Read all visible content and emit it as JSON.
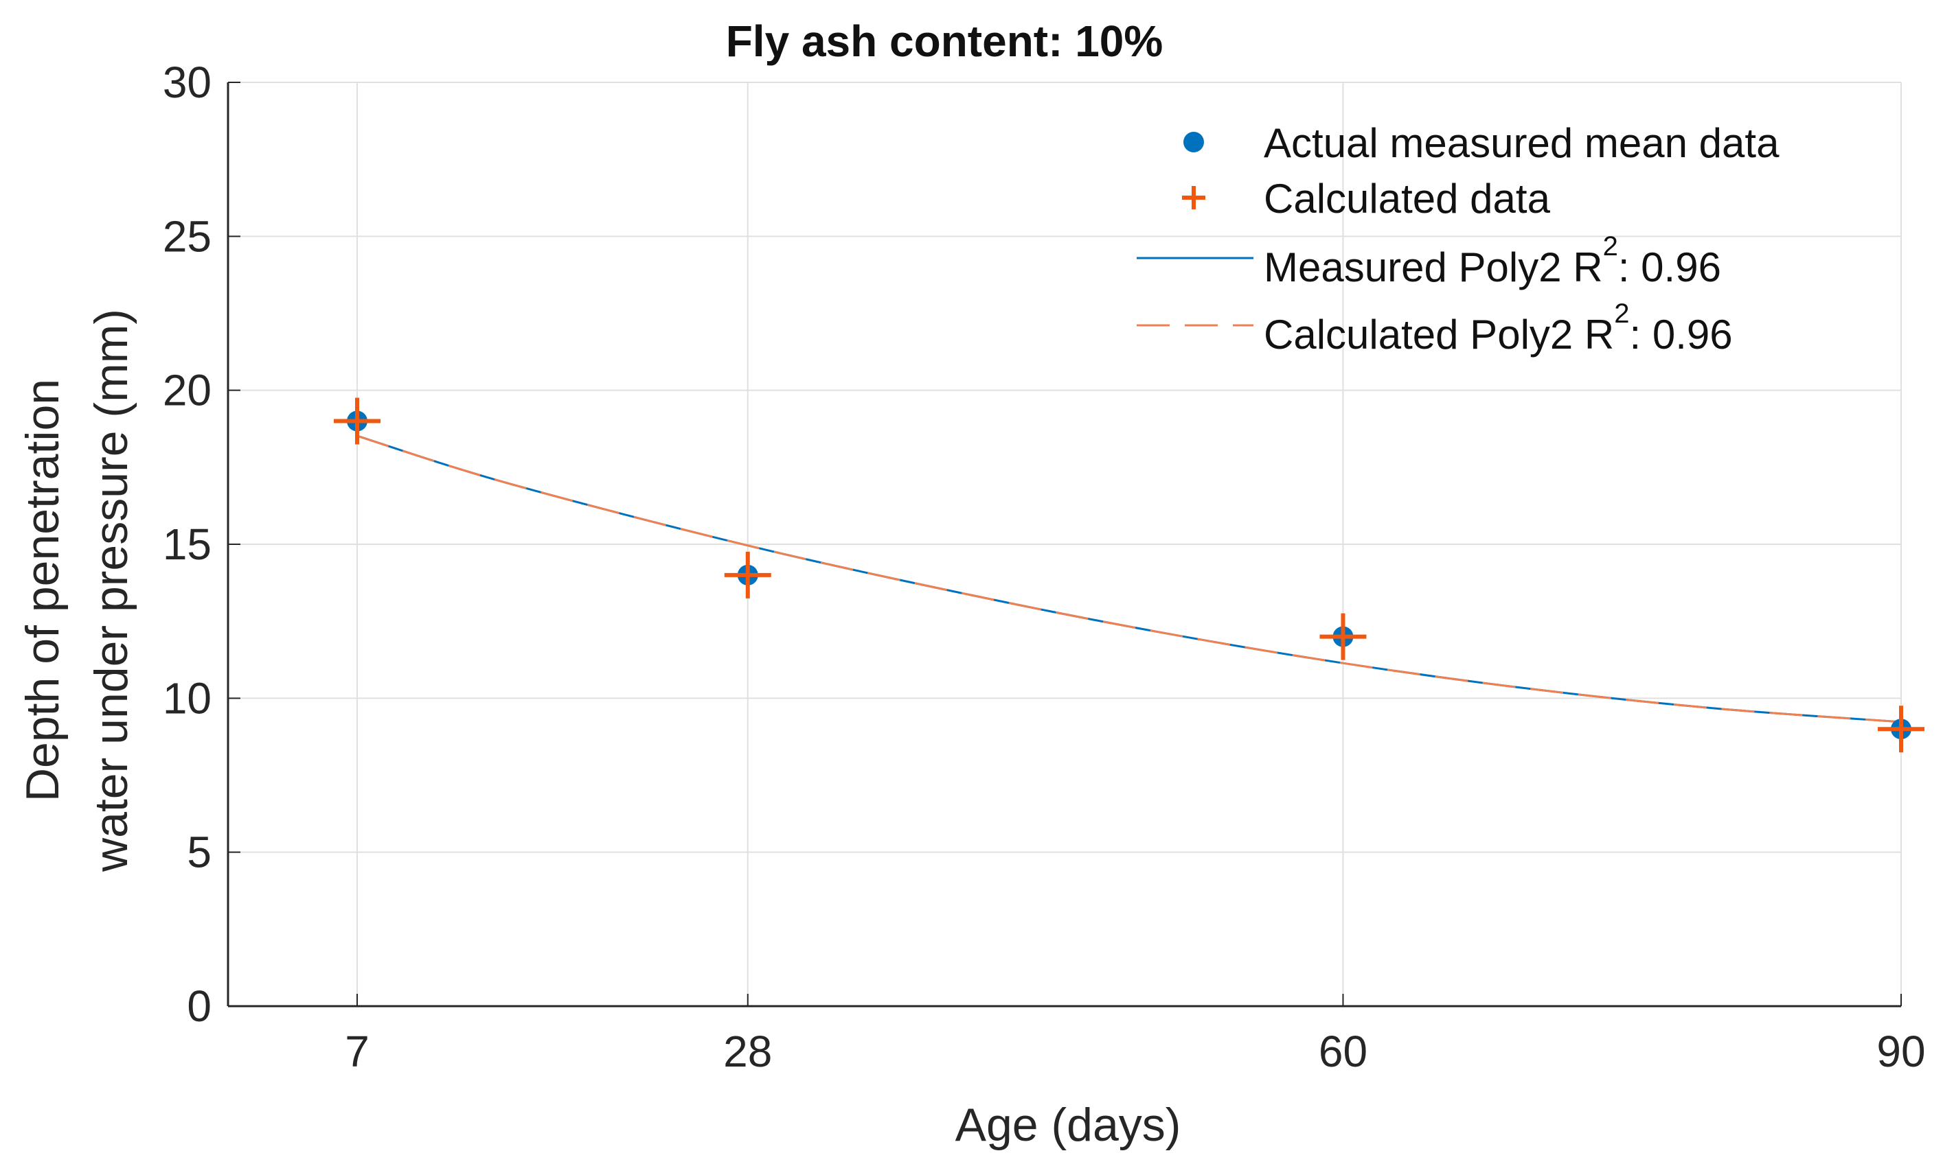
{
  "chart_data": {
    "type": "scatter",
    "title": "Fly ash content: 10%",
    "xlabel": "Age (days)",
    "ylabel_line1": "Depth of penetration",
    "ylabel_line2": "water under pressure (mm)",
    "ylim": [
      0,
      30
    ],
    "yticks": [
      0,
      5,
      10,
      15,
      20,
      25,
      30
    ],
    "xticks": [
      7,
      28,
      60,
      90
    ],
    "grid": true,
    "legend_position": "top-right",
    "colors": {
      "measured": "#0072BD",
      "calculated": "#F0570F",
      "fit_calc": "#F08050"
    },
    "series": [
      {
        "name": "Actual measured mean data",
        "kind": "markers-dot",
        "x": [
          7,
          28,
          60,
          90
        ],
        "y": [
          19,
          14,
          12,
          9
        ]
      },
      {
        "name": "Calculated data",
        "kind": "markers-plus",
        "x": [
          7,
          28,
          60,
          90
        ],
        "y": [
          19,
          14,
          12,
          9
        ]
      },
      {
        "name": "Measured Poly2 R",
        "r2_sup": "2",
        "r2_value": ": 0.96",
        "kind": "line-solid",
        "x": [
          7,
          15,
          28,
          40,
          50,
          60,
          70,
          80,
          90
        ],
        "y": [
          18.52,
          17.0,
          14.96,
          13.35,
          12.16,
          11.14,
          10.31,
          9.67,
          9.23
        ]
      },
      {
        "name": "Calculated Poly2 R",
        "r2_sup": "2",
        "r2_value": ": 0.96",
        "kind": "line-dashed",
        "x": [
          7,
          15,
          28,
          40,
          50,
          60,
          70,
          80,
          90
        ],
        "y": [
          18.52,
          17.0,
          14.96,
          13.35,
          12.16,
          11.14,
          10.31,
          9.67,
          9.23
        ]
      }
    ]
  }
}
